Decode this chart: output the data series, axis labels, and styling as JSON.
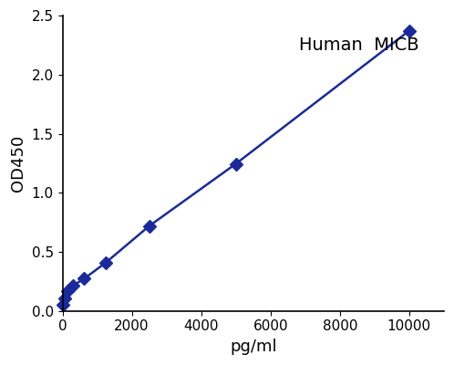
{
  "x": [
    0,
    78,
    156,
    313,
    625,
    1250,
    2500,
    5000,
    10000
  ],
  "y": [
    0.052,
    0.102,
    0.168,
    0.215,
    0.272,
    0.408,
    0.718,
    1.245,
    2.372
  ],
  "line_color": "#1a2a9c",
  "title": "Human  MICB",
  "title_color": "#000000",
  "xlabel": "pg/ml",
  "ylabel": "OD450",
  "xlim": [
    0,
    11000
  ],
  "ylim": [
    0,
    2.5
  ],
  "xticks": [
    0,
    2000,
    4000,
    6000,
    8000,
    10000
  ],
  "yticks": [
    0,
    0.5,
    1,
    1.5,
    2,
    2.5
  ],
  "title_fontsize": 14,
  "label_fontsize": 13,
  "tick_fontsize": 11,
  "marker": "D",
  "markersize": 7,
  "linewidth": 1.8
}
